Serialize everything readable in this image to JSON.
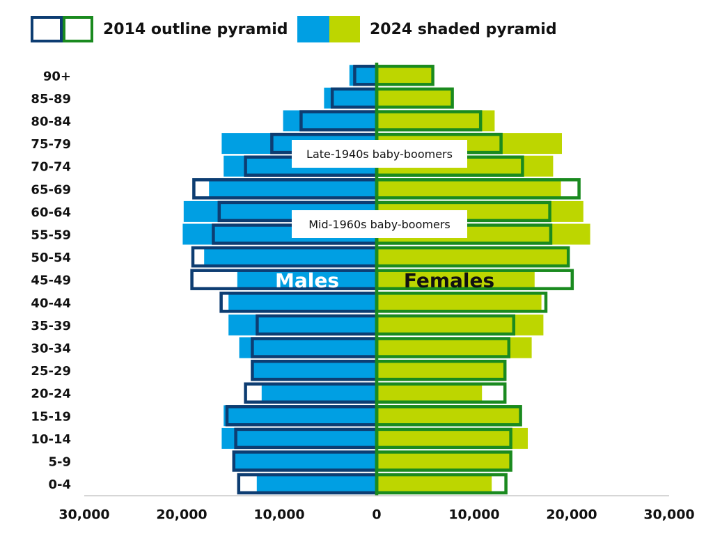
{
  "legend": {
    "outline_label": "2014 outline pyramid",
    "shaded_label": "2024 shaded pyramid"
  },
  "colors": {
    "male_fill": "#009FE3",
    "female_fill": "#BDD600",
    "male_outline": "#0D3D72",
    "female_outline": "#1A8A1F",
    "axis": "#BFBFBF"
  },
  "chart_data": {
    "type": "bar",
    "subtype": "population-pyramid",
    "categories": [
      "90+",
      "85-89",
      "80-84",
      "75-79",
      "70-74",
      "65-69",
      "60-64",
      "55-59",
      "50-54",
      "45-49",
      "40-44",
      "35-39",
      "30-34",
      "25-29",
      "20-24",
      "15-19",
      "10-14",
      "5-9",
      "0-4"
    ],
    "series": [
      {
        "name": "2024 shaded pyramid",
        "sex": "Males",
        "values": [
          2800,
          5400,
          9600,
          15900,
          15700,
          17200,
          19800,
          19900,
          17700,
          14300,
          15200,
          15200,
          14100,
          12900,
          11800,
          15700,
          15900,
          14500,
          12300
        ]
      },
      {
        "name": "2024 shaded pyramid",
        "sex": "Females",
        "values": [
          5700,
          7800,
          12100,
          19000,
          18100,
          18900,
          21200,
          21900,
          19500,
          16200,
          16900,
          17100,
          15900,
          13200,
          10800,
          14800,
          15500,
          13800,
          11800
        ]
      },
      {
        "name": "2014 outline pyramid",
        "sex": "Males",
        "values": [
          2400,
          4700,
          7900,
          10900,
          13600,
          18900,
          16300,
          16900,
          19000,
          19100,
          16100,
          12400,
          12900,
          12900,
          13600,
          15500,
          14600,
          14800,
          14300
        ]
      },
      {
        "name": "2014 outline pyramid",
        "sex": "Females",
        "values": [
          5900,
          7900,
          10800,
          12900,
          15100,
          20900,
          17900,
          18000,
          19800,
          20200,
          17500,
          14200,
          13700,
          13300,
          13300,
          14900,
          13900,
          13900,
          13400
        ]
      }
    ],
    "x_ticks": [
      "30,000",
      "20,000",
      "10,000",
      "0",
      "10,000",
      "20,000",
      "30,000"
    ],
    "xlim": [
      -30000,
      30000
    ],
    "annotations": [
      "Late-1940s baby-boomers",
      "Mid-1960s baby-boomers"
    ],
    "side_labels": {
      "left": "Males",
      "right": "Females"
    }
  }
}
